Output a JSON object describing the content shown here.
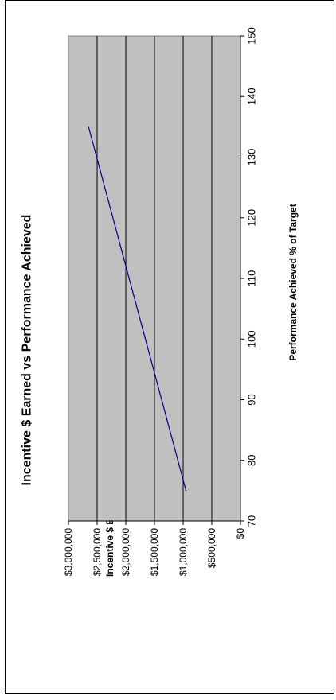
{
  "chart_data": {
    "type": "line",
    "orientation": "rotated-90-ccw",
    "title": "Incentive $ Earned vs Performance Achieved",
    "xlabel": "Performance Achieved % of Target",
    "ylabel": "Incentive $ Earned",
    "xlim": [
      70,
      150
    ],
    "ylim": [
      0,
      3000000
    ],
    "x_ticks": [
      "70",
      "80",
      "90",
      "100",
      "110",
      "120",
      "130",
      "140",
      "150"
    ],
    "y_ticks": [
      "$0",
      "$500,000",
      "$1,000,000",
      "$1,500,000",
      "$2,000,000",
      "$2,500,000",
      "$3,000,000"
    ],
    "grid": true,
    "legend": "none",
    "series": [
      {
        "x": [
          75,
          135
        ],
        "y": [
          950000,
          2650000
        ]
      }
    ],
    "colors": {
      "plot_background": "#c0c0c0",
      "line": "#000080",
      "gridlines": "#000000",
      "frame": "#000000"
    }
  }
}
